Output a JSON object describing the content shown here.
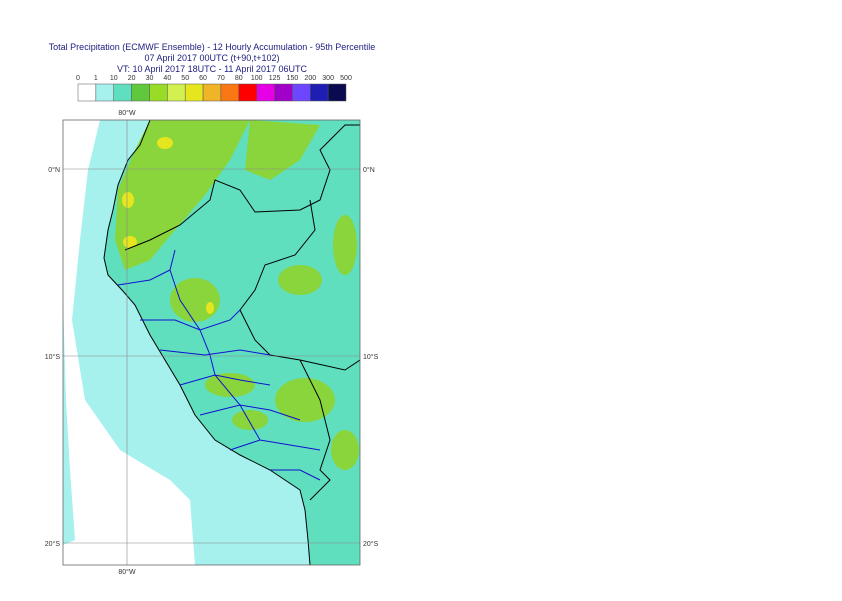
{
  "header": {
    "title": "Total Precipitation (ECMWF Ensemble) - 12 Hourly Accumulation - 95th Percentile",
    "base_time": "07 April 2017 00UTC (t+90,t+102)",
    "valid_time": "VT: 10 April 2017 18UTC - 11 April 2017 06UTC"
  },
  "legend": {
    "labels": [
      "0",
      "1",
      "10",
      "20",
      "30",
      "40",
      "50",
      "60",
      "70",
      "80",
      "100",
      "125",
      "150",
      "200",
      "300",
      "500"
    ],
    "colors": [
      "#ffffff",
      "#a6f0ee",
      "#60dfbe",
      "#60c83c",
      "#98dc28",
      "#d2f050",
      "#e6e61e",
      "#f0b428",
      "#fa7814",
      "#ff0000",
      "#e600e6",
      "#a000c8",
      "#6e46ff",
      "#1e1eb4",
      "#0a0a50"
    ]
  },
  "map": {
    "lon_label": "80°W",
    "lat_labels": [
      "0°N",
      "10°S",
      "20°S"
    ]
  }
}
